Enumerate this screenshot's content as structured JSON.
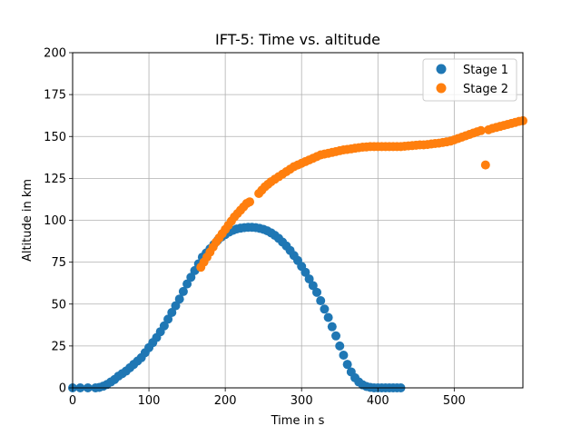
{
  "chart_data": {
    "type": "scatter",
    "title": "IFT-5: Time vs. altitude",
    "xlabel": "Time in s",
    "ylabel": "Altitude in km",
    "xlim": [
      0,
      590
    ],
    "ylim": [
      0,
      200
    ],
    "xticks": [
      0,
      100,
      200,
      300,
      400,
      500
    ],
    "yticks": [
      0,
      25,
      50,
      75,
      100,
      125,
      150,
      175,
      200
    ],
    "grid": true,
    "legend_position": "top-right",
    "series": [
      {
        "name": "Stage 1",
        "color": "#1f77b4",
        "points": [
          [
            0,
            0
          ],
          [
            10,
            0
          ],
          [
            20,
            0
          ],
          [
            30,
            0
          ],
          [
            35,
            0.3
          ],
          [
            40,
            1
          ],
          [
            45,
            2
          ],
          [
            50,
            3.5
          ],
          [
            55,
            5
          ],
          [
            60,
            7
          ],
          [
            65,
            8.5
          ],
          [
            70,
            10
          ],
          [
            75,
            12
          ],
          [
            80,
            14
          ],
          [
            85,
            16
          ],
          [
            90,
            18
          ],
          [
            95,
            21
          ],
          [
            100,
            24
          ],
          [
            105,
            27
          ],
          [
            110,
            30
          ],
          [
            115,
            33.5
          ],
          [
            120,
            37
          ],
          [
            125,
            41
          ],
          [
            130,
            45
          ],
          [
            135,
            49
          ],
          [
            140,
            53
          ],
          [
            145,
            57.5
          ],
          [
            150,
            62
          ],
          [
            155,
            66
          ],
          [
            160,
            70
          ],
          [
            165,
            74
          ],
          [
            170,
            78
          ],
          [
            175,
            80.5
          ],
          [
            180,
            83
          ],
          [
            185,
            85.5
          ],
          [
            190,
            88
          ],
          [
            195,
            90
          ],
          [
            200,
            91.5
          ],
          [
            205,
            93
          ],
          [
            210,
            94
          ],
          [
            215,
            94.8
          ],
          [
            220,
            95.3
          ],
          [
            225,
            95.6
          ],
          [
            230,
            95.8
          ],
          [
            235,
            95.8
          ],
          [
            240,
            95.6
          ],
          [
            245,
            95.2
          ],
          [
            250,
            94.6
          ],
          [
            255,
            93.7
          ],
          [
            260,
            92.5
          ],
          [
            265,
            91
          ],
          [
            270,
            89.2
          ],
          [
            275,
            87
          ],
          [
            280,
            84.7
          ],
          [
            285,
            82
          ],
          [
            290,
            79
          ],
          [
            295,
            76
          ],
          [
            300,
            72.5
          ],
          [
            305,
            69
          ],
          [
            310,
            65
          ],
          [
            315,
            61
          ],
          [
            320,
            57
          ],
          [
            325,
            52
          ],
          [
            330,
            47
          ],
          [
            335,
            42
          ],
          [
            340,
            36.5
          ],
          [
            345,
            31
          ],
          [
            350,
            25
          ],
          [
            355,
            19.5
          ],
          [
            360,
            14
          ],
          [
            365,
            9.5
          ],
          [
            370,
            6
          ],
          [
            375,
            3.5
          ],
          [
            380,
            1.8
          ],
          [
            385,
            0.8
          ],
          [
            390,
            0.3
          ],
          [
            395,
            0
          ],
          [
            400,
            0
          ],
          [
            405,
            0
          ],
          [
            410,
            0
          ],
          [
            415,
            0
          ],
          [
            420,
            0
          ],
          [
            425,
            0
          ],
          [
            430,
            0
          ]
        ]
      },
      {
        "name": "Stage 2",
        "color": "#ff7f0e",
        "points": [
          [
            168,
            72
          ],
          [
            172,
            75
          ],
          [
            176,
            78
          ],
          [
            180,
            81
          ],
          [
            184,
            84
          ],
          [
            188,
            87
          ],
          [
            192,
            89.5
          ],
          [
            196,
            92
          ],
          [
            200,
            94.5
          ],
          [
            204,
            97
          ],
          [
            208,
            99.5
          ],
          [
            212,
            102
          ],
          [
            216,
            104
          ],
          [
            220,
            106
          ],
          [
            224,
            108
          ],
          [
            228,
            110
          ],
          [
            232,
            111
          ],
          [
            244,
            116
          ],
          [
            248,
            118
          ],
          [
            252,
            120
          ],
          [
            256,
            121.5
          ],
          [
            260,
            123
          ],
          [
            265,
            124.5
          ],
          [
            270,
            126
          ],
          [
            275,
            127.5
          ],
          [
            280,
            129
          ],
          [
            285,
            130.5
          ],
          [
            290,
            132
          ],
          [
            295,
            133
          ],
          [
            300,
            134
          ],
          [
            305,
            135
          ],
          [
            310,
            136
          ],
          [
            315,
            137
          ],
          [
            320,
            138
          ],
          [
            325,
            139
          ],
          [
            330,
            139.5
          ],
          [
            335,
            140
          ],
          [
            340,
            140.5
          ],
          [
            345,
            141
          ],
          [
            350,
            141.5
          ],
          [
            355,
            142
          ],
          [
            360,
            142.3
          ],
          [
            365,
            142.6
          ],
          [
            370,
            143
          ],
          [
            375,
            143.3
          ],
          [
            380,
            143.6
          ],
          [
            385,
            143.8
          ],
          [
            390,
            144
          ],
          [
            395,
            144
          ],
          [
            400,
            144
          ],
          [
            405,
            144
          ],
          [
            410,
            144
          ],
          [
            415,
            144
          ],
          [
            420,
            144
          ],
          [
            425,
            144
          ],
          [
            430,
            144
          ],
          [
            435,
            144.2
          ],
          [
            440,
            144.4
          ],
          [
            445,
            144.6
          ],
          [
            450,
            144.8
          ],
          [
            455,
            145
          ],
          [
            460,
            145
          ],
          [
            465,
            145.2
          ],
          [
            470,
            145.5
          ],
          [
            475,
            145.8
          ],
          [
            480,
            146
          ],
          [
            485,
            146.4
          ],
          [
            490,
            146.8
          ],
          [
            495,
            147.2
          ],
          [
            500,
            148
          ],
          [
            505,
            148.8
          ],
          [
            510,
            149.6
          ],
          [
            515,
            150.4
          ],
          [
            520,
            151.2
          ],
          [
            525,
            152
          ],
          [
            530,
            152.8
          ],
          [
            535,
            153.5
          ],
          [
            541,
            133
          ],
          [
            545,
            154
          ],
          [
            550,
            154.8
          ],
          [
            555,
            155.4
          ],
          [
            560,
            156
          ],
          [
            565,
            156.6
          ],
          [
            570,
            157.2
          ],
          [
            575,
            157.8
          ],
          [
            580,
            158.4
          ],
          [
            585,
            159
          ],
          [
            590,
            159.4
          ]
        ]
      }
    ]
  }
}
